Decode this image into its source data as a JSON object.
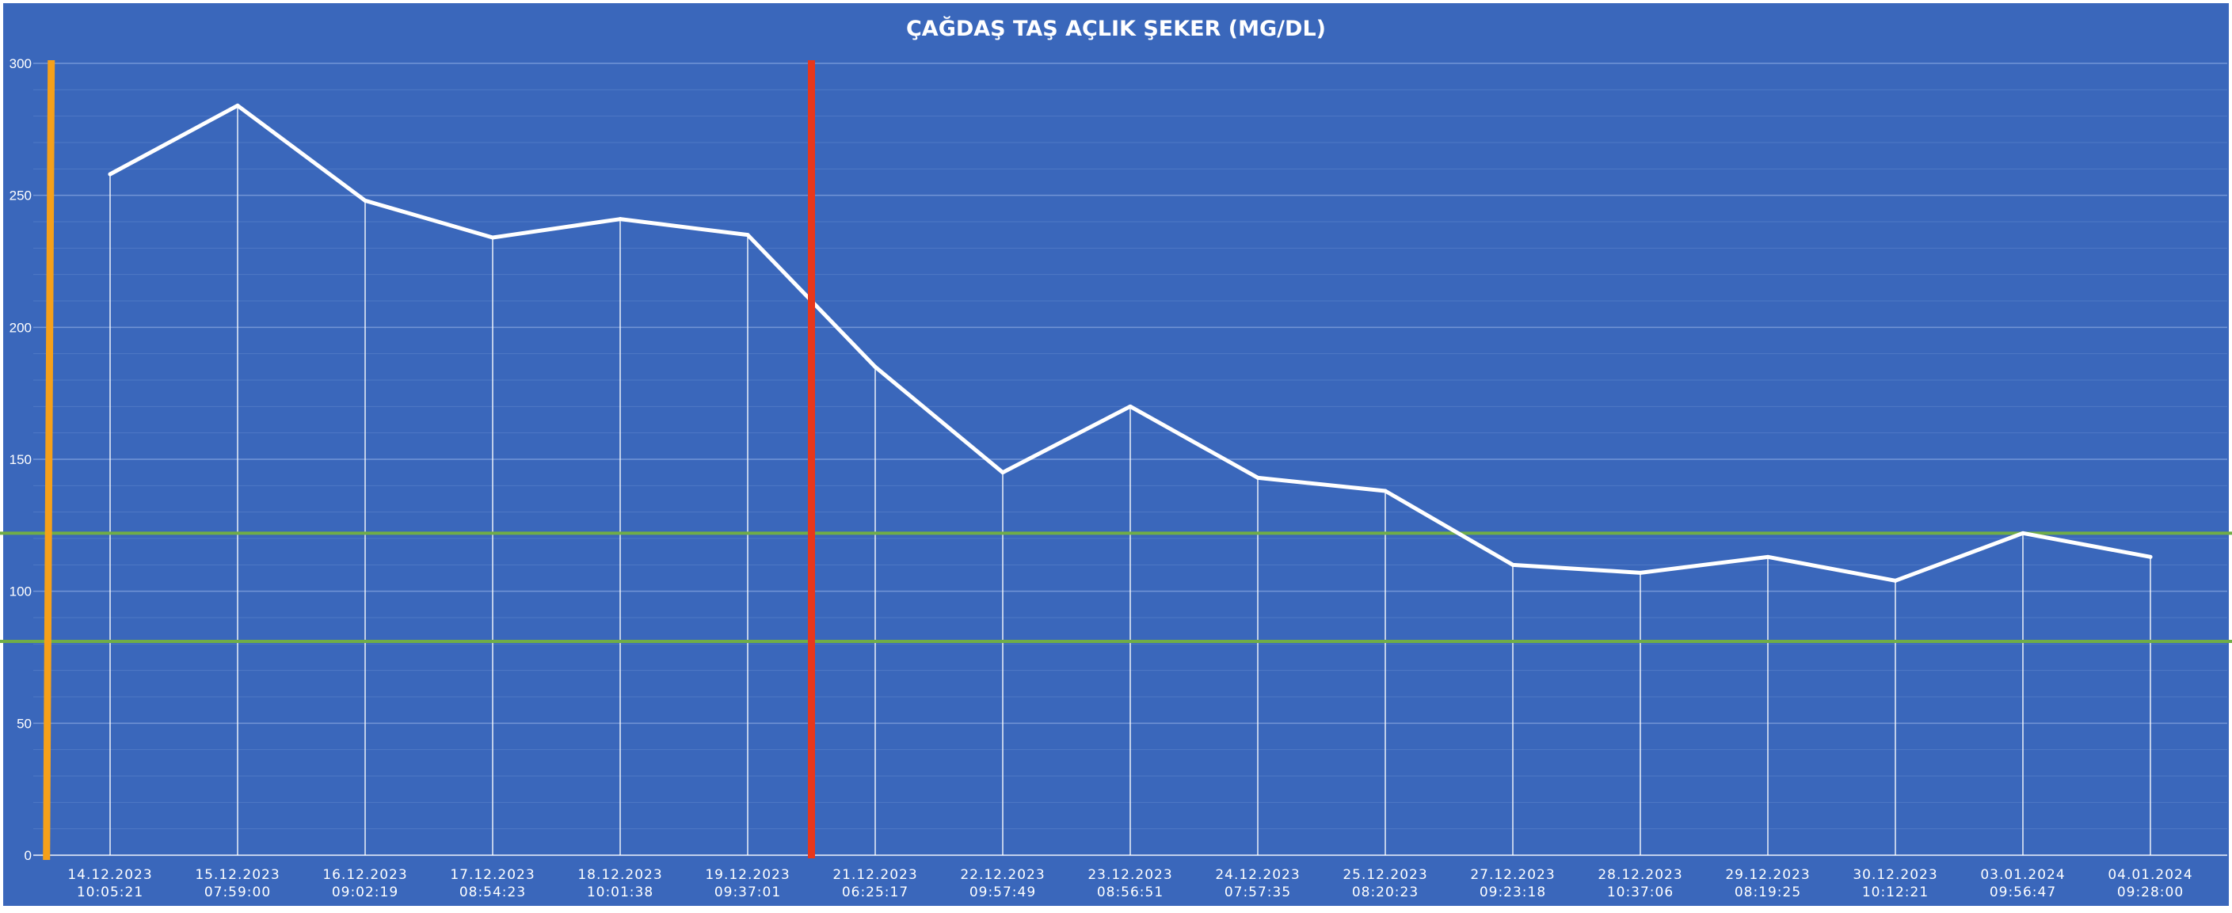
{
  "chart_data": {
    "type": "line",
    "title": "ÇAĞDAŞ TAŞ AÇLIK ŞEKER (MG/DL)",
    "xlabel": "",
    "ylabel": "",
    "ylim": [
      0,
      300
    ],
    "yticks": [
      0,
      50,
      100,
      150,
      200,
      250,
      300
    ],
    "grid": true,
    "drop_lines": true,
    "categories": [
      {
        "date": "14.12.2023",
        "time": "10:05:21"
      },
      {
        "date": "15.12.2023",
        "time": "07:59:00"
      },
      {
        "date": "16.12.2023",
        "time": "09:02:19"
      },
      {
        "date": "17.12.2023",
        "time": "08:54:23"
      },
      {
        "date": "18.12.2023",
        "time": "10:01:38"
      },
      {
        "date": "19.12.2023",
        "time": "09:37:01"
      },
      {
        "date": "21.12.2023",
        "time": "06:25:17"
      },
      {
        "date": "22.12.2023",
        "time": "09:57:49"
      },
      {
        "date": "23.12.2023",
        "time": "08:56:51"
      },
      {
        "date": "24.12.2023",
        "time": "07:57:35"
      },
      {
        "date": "25.12.2023",
        "time": "08:20:23"
      },
      {
        "date": "27.12.2023",
        "time": "09:23:18"
      },
      {
        "date": "28.12.2023",
        "time": "10:37:06"
      },
      {
        "date": "29.12.2023",
        "time": "08:19:25"
      },
      {
        "date": "30.12.2023",
        "time": "10:12:21"
      },
      {
        "date": "03.01.2024",
        "time": "09:56:47"
      },
      {
        "date": "04.01.2024",
        "time": "09:28:00"
      }
    ],
    "series": [
      {
        "values": [
          258,
          284,
          248,
          234,
          241,
          235,
          185,
          145,
          170,
          143,
          138,
          110,
          107,
          113,
          104,
          122,
          113
        ]
      }
    ],
    "reference_lines": {
      "horizontal": [
        {
          "y": 122,
          "color": "#70AD47"
        },
        {
          "y": 81,
          "color": "#70AD47"
        }
      ],
      "vertical": [
        {
          "after_index": -0.48,
          "color": "#F5A01A"
        },
        {
          "after_index": 5.5,
          "color": "#E8371B"
        }
      ]
    },
    "colors": {
      "background": "#3A67BB",
      "line": "#FFFFFF",
      "grid": "#6A8FD2"
    }
  }
}
